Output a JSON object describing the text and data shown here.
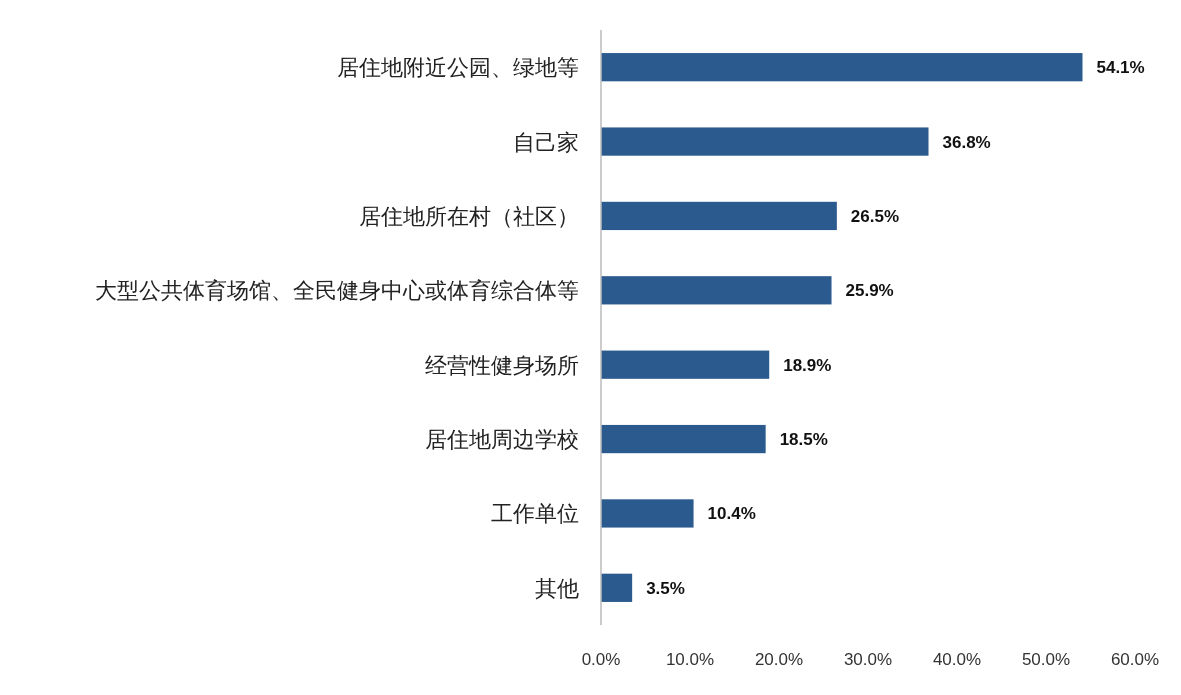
{
  "chart_data": {
    "type": "bar",
    "orientation": "horizontal",
    "categories": [
      "居住地附近公园、绿地等",
      "自己家",
      "居住地所在村（社区）",
      "大型公共体育场馆、全民健身中心或体育综合体等",
      "经营性健身场所",
      "居住地周边学校",
      "工作单位",
      "其他"
    ],
    "values": [
      54.1,
      36.8,
      26.5,
      25.9,
      18.9,
      18.5,
      10.4,
      3.5
    ],
    "value_labels": [
      "54.1%",
      "36.8%",
      "26.5%",
      "25.9%",
      "18.9%",
      "18.5%",
      "10.4%",
      "3.5%"
    ],
    "color": "#2b5b8e",
    "xlim": [
      0,
      60
    ],
    "xticks": [
      {
        "value": 0,
        "label": "0.0%"
      },
      {
        "value": 10,
        "label": "10.0%"
      },
      {
        "value": 20,
        "label": "20.0%"
      },
      {
        "value": 30,
        "label": "30.0%"
      },
      {
        "value": 40,
        "label": "40.0%"
      },
      {
        "value": 50,
        "label": "50.0%"
      },
      {
        "value": 60,
        "label": "60.0%"
      }
    ],
    "grid": false
  }
}
